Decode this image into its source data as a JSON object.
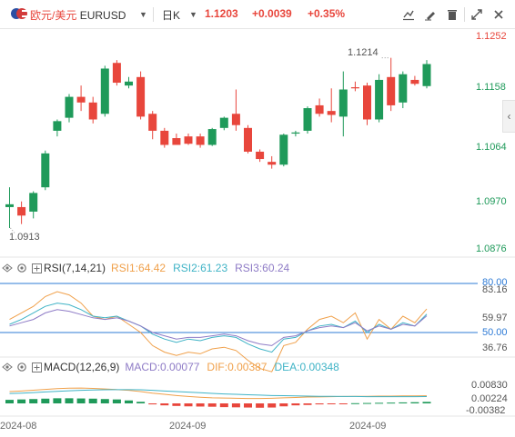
{
  "toolbar": {
    "pair_cn": "欧元/美元",
    "symbol": "EURUSD",
    "period": "日K",
    "last_price": "1.1203",
    "change": "+0.0039",
    "change_pct": "+0.35%",
    "icons": [
      "chart-tool-icon",
      "draw-icon",
      "delete-drawing-icon",
      "fullscreen-icon",
      "close-icon"
    ]
  },
  "main": {
    "price_axis": [
      "1.1252",
      "1.1158",
      "1.1064",
      "1.0970",
      "1.0876"
    ],
    "high_label": "1.1214",
    "low_label": "1.0913"
  },
  "rsi": {
    "label": "RSI(7,14,21)",
    "rsi1": "RSI1:64.42",
    "rsi2": "RSI2:61.23",
    "rsi3": "RSI3:60.24",
    "axis": [
      "80.00",
      "83.16",
      "59.97",
      "50.00",
      "36.76"
    ]
  },
  "macd": {
    "label": "MACD(12,26,9)",
    "macd": "MACD:0.00077",
    "dif": "DIF:0.00387",
    "dea": "DEA:0.00348",
    "axis": [
      "0.00830",
      "0.00224",
      "-0.00382"
    ]
  },
  "xaxis": [
    "2024-08",
    "2024-09",
    "2024-09"
  ],
  "colors": {
    "up": "#e8463c",
    "down": "#1f9a5a",
    "accent": "#2e7bd6",
    "rsi1": "#f0a04a",
    "rsi2": "#3fb3c6",
    "rsi3": "#8e7bc6"
  },
  "chart_data": {
    "type": "candlestick",
    "title": "EURUSD",
    "ylim": [
      1.0876,
      1.1252
    ],
    "candles": [
      {
        "o": 1.095,
        "h": 1.0985,
        "l": 1.0913,
        "c": 1.0955
      },
      {
        "o": 1.095,
        "h": 1.096,
        "l": 1.092,
        "c": 1.0935
      },
      {
        "o": 1.0942,
        "h": 1.0978,
        "l": 1.093,
        "c": 1.0975
      },
      {
        "o": 1.0985,
        "h": 1.105,
        "l": 1.098,
        "c": 1.1045
      },
      {
        "o": 1.1085,
        "h": 1.1105,
        "l": 1.1075,
        "c": 1.1102
      },
      {
        "o": 1.1108,
        "h": 1.115,
        "l": 1.11,
        "c": 1.1145
      },
      {
        "o": 1.1145,
        "h": 1.1165,
        "l": 1.112,
        "c": 1.1135
      },
      {
        "o": 1.1135,
        "h": 1.1145,
        "l": 1.1098,
        "c": 1.1105
      },
      {
        "o": 1.1115,
        "h": 1.12,
        "l": 1.111,
        "c": 1.1195
      },
      {
        "o": 1.1205,
        "h": 1.121,
        "l": 1.1165,
        "c": 1.117
      },
      {
        "o": 1.1165,
        "h": 1.118,
        "l": 1.116,
        "c": 1.1172
      },
      {
        "o": 1.118,
        "h": 1.119,
        "l": 1.1105,
        "c": 1.111
      },
      {
        "o": 1.1115,
        "h": 1.112,
        "l": 1.107,
        "c": 1.1085
      },
      {
        "o": 1.1085,
        "h": 1.109,
        "l": 1.1055,
        "c": 1.106
      },
      {
        "o": 1.1072,
        "h": 1.108,
        "l": 1.106,
        "c": 1.106
      },
      {
        "o": 1.1075,
        "h": 1.108,
        "l": 1.106,
        "c": 1.1062
      },
      {
        "o": 1.1075,
        "h": 1.108,
        "l": 1.1055,
        "c": 1.106
      },
      {
        "o": 1.106,
        "h": 1.109,
        "l": 1.1058,
        "c": 1.1088
      },
      {
        "o": 1.109,
        "h": 1.111,
        "l": 1.1086,
        "c": 1.1108
      },
      {
        "o": 1.1115,
        "h": 1.1158,
        "l": 1.1085,
        "c": 1.1095
      },
      {
        "o": 1.109,
        "h": 1.1095,
        "l": 1.1045,
        "c": 1.1048
      },
      {
        "o": 1.1048,
        "h": 1.1052,
        "l": 1.103,
        "c": 1.1035
      },
      {
        "o": 1.103,
        "h": 1.104,
        "l": 1.1018,
        "c": 1.1025
      },
      {
        "o": 1.1025,
        "h": 1.108,
        "l": 1.1022,
        "c": 1.1078
      },
      {
        "o": 1.108,
        "h": 1.1085,
        "l": 1.1075,
        "c": 1.1082
      },
      {
        "o": 1.1085,
        "h": 1.1128,
        "l": 1.108,
        "c": 1.1125
      },
      {
        "o": 1.113,
        "h": 1.1142,
        "l": 1.111,
        "c": 1.1115
      },
      {
        "o": 1.112,
        "h": 1.116,
        "l": 1.11,
        "c": 1.1113
      },
      {
        "o": 1.111,
        "h": 1.119,
        "l": 1.1075,
        "c": 1.1158
      },
      {
        "o": 1.1162,
        "h": 1.1172,
        "l": 1.1155,
        "c": 1.116
      },
      {
        "o": 1.1165,
        "h": 1.117,
        "l": 1.1095,
        "c": 1.1105
      },
      {
        "o": 1.1105,
        "h": 1.1185,
        "l": 1.11,
        "c": 1.1175
      },
      {
        "o": 1.118,
        "h": 1.1214,
        "l": 1.112,
        "c": 1.113
      },
      {
        "o": 1.1135,
        "h": 1.119,
        "l": 1.1125,
        "c": 1.1185
      },
      {
        "o": 1.1175,
        "h": 1.1182,
        "l": 1.1165,
        "c": 1.1168
      },
      {
        "o": 1.1164,
        "h": 1.121,
        "l": 1.116,
        "c": 1.1203
      }
    ],
    "rsi1": [
      58,
      62,
      66,
      72,
      75,
      73,
      68,
      60,
      58,
      60,
      55,
      50,
      42,
      38,
      36,
      38,
      37,
      40,
      41,
      39,
      33,
      28,
      26,
      42,
      44,
      52,
      58,
      60,
      56,
      62,
      46,
      58,
      52,
      60,
      56,
      64.42
    ],
    "rsi2": [
      55,
      58,
      62,
      66,
      68,
      67,
      64,
      60,
      59,
      60,
      57,
      54,
      49,
      46,
      44,
      46,
      45,
      47,
      48,
      47,
      43,
      40,
      38,
      46,
      47,
      51,
      54,
      55,
      53,
      57,
      50,
      55,
      52,
      56,
      54,
      61.23
    ],
    "rsi3": [
      54,
      56,
      58,
      62,
      64,
      63,
      61,
      59,
      58,
      59,
      57,
      54,
      50,
      48,
      46,
      47,
      47,
      48,
      49,
      48,
      45,
      43,
      42,
      47,
      48,
      51,
      53,
      54,
      53,
      56,
      51,
      54,
      52,
      55,
      54,
      60.24
    ],
    "macd_hist": [
      0.0018,
      0.002,
      0.0022,
      0.0024,
      0.0026,
      0.0026,
      0.0025,
      0.0024,
      0.0022,
      0.002,
      0.0015,
      0.0008,
      -0.0005,
      -0.001,
      -0.0013,
      -0.0015,
      -0.0016,
      -0.0017,
      -0.0019,
      -0.002,
      -0.0021,
      -0.0022,
      -0.0021,
      -0.0015,
      -0.001,
      -0.0008,
      -0.0005,
      -0.0003,
      -0.0001,
      0.0001,
      0.0002,
      0.0003,
      0.0004,
      0.0005,
      0.0006,
      0.00077
    ],
    "dif": [
      0.006,
      0.0063,
      0.0067,
      0.0071,
      0.0075,
      0.0077,
      0.0078,
      0.0076,
      0.0073,
      0.007,
      0.0066,
      0.006,
      0.0052,
      0.0046,
      0.004,
      0.0035,
      0.0031,
      0.0028,
      0.0027,
      0.0026,
      0.0025,
      0.0025,
      0.0026,
      0.0028,
      0.003,
      0.0032,
      0.0033,
      0.0034,
      0.0035,
      0.0036,
      0.0036,
      0.0037,
      0.0037,
      0.0038,
      0.0038,
      0.00387
    ],
    "dea": [
      0.005,
      0.0052,
      0.0055,
      0.0058,
      0.0061,
      0.0064,
      0.0066,
      0.0068,
      0.0069,
      0.007,
      0.007,
      0.0069,
      0.0066,
      0.0063,
      0.006,
      0.0057,
      0.0054,
      0.0051,
      0.0048,
      0.0046,
      0.0044,
      0.0042,
      0.004,
      0.0039,
      0.0038,
      0.0037,
      0.0036,
      0.0036,
      0.0035,
      0.0035,
      0.0034,
      0.0034,
      0.0034,
      0.0034,
      0.0034,
      0.00348
    ]
  }
}
